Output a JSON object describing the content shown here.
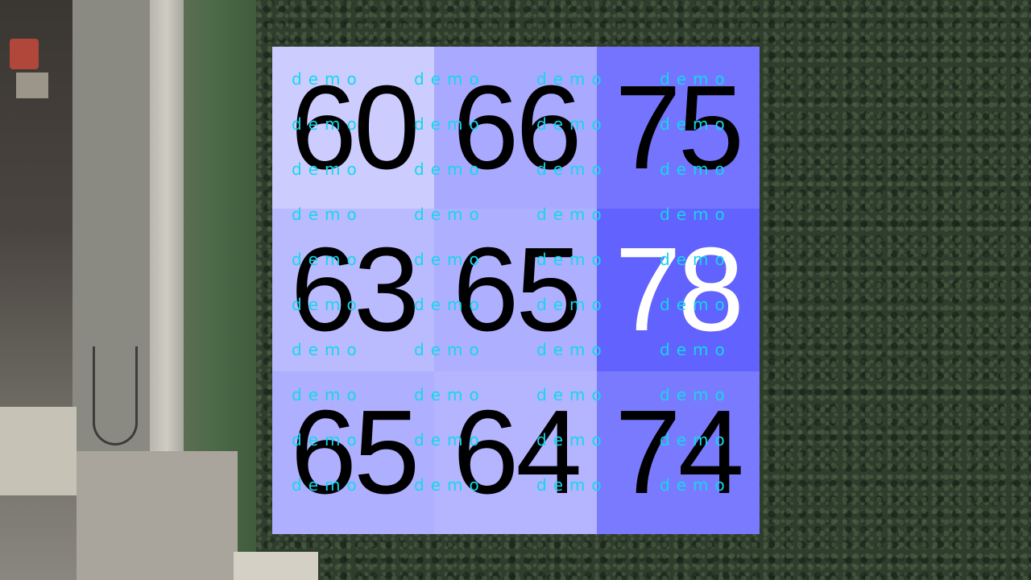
{
  "chart_data": {
    "type": "heatmap",
    "rows": 3,
    "cols": 3,
    "values": [
      [
        60,
        66,
        75
      ],
      [
        63,
        65,
        78
      ],
      [
        65,
        64,
        74
      ]
    ],
    "vmin": 60,
    "vmax": 78,
    "colors": {
      "low": "#ccccff",
      "high": "#6262ff",
      "text_dark": "#000000",
      "text_light": "#ffffff"
    },
    "watermark_text": "demo"
  }
}
